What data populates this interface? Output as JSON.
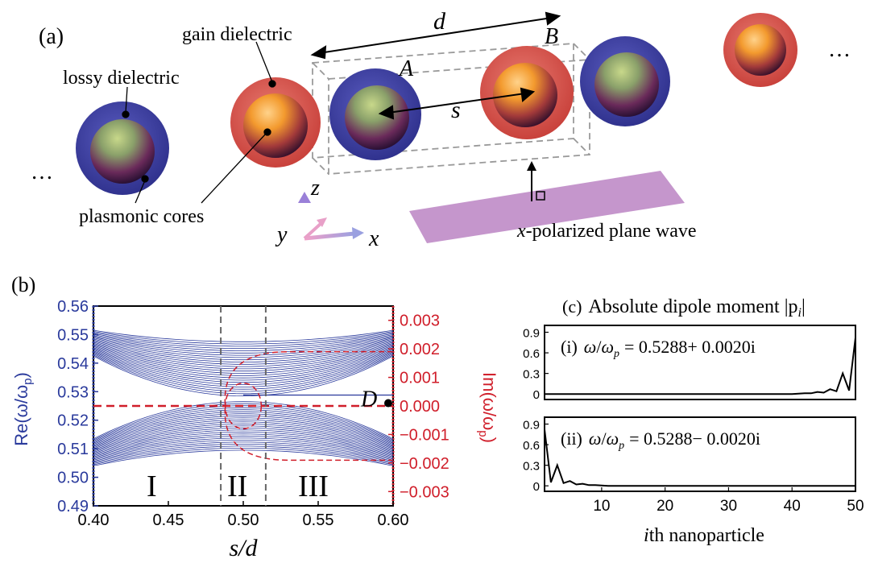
{
  "panel_a": {
    "label": "(a)",
    "d_label": "d",
    "s_label": "s",
    "A_label": "A",
    "B_label": "B",
    "gain_label": "gain dielectric",
    "lossy_label": "lossy dielectric",
    "cores_label": "plasmonic cores",
    "wave_label_var": "x",
    "wave_label_text": "-polarized plane wave",
    "ellipsis": "…",
    "axes": {
      "z": "z",
      "y": "y",
      "x": "x"
    },
    "colors": {
      "gain": "#d9534f",
      "lossy": "#3d3fa8",
      "core": "#f0a030",
      "wave": "#c596cc"
    }
  },
  "panel_b": {
    "label": "(b)",
    "region_labels": [
      "I",
      "II",
      "III"
    ],
    "D_label": "D",
    "left_axis_label": "Re(ω/ω",
    "left_axis_sub": "p",
    "right_axis_label": "Im(ω/ω",
    "right_axis_sub": "p",
    "xlabel": "s/d",
    "colors": {
      "left": "#2a3a9c",
      "right": "#d01e2a"
    }
  },
  "panel_c": {
    "label": "(c)",
    "title": "Absolute dipole moment |p",
    "title_sub": "i",
    "title_end": "|",
    "sub1_prefix": "(i)",
    "sub1_value": "= 0.5288+ 0.0020i",
    "sub2_prefix": "(ii)",
    "sub2_value": "= 0.5288− 0.0020i",
    "omega": "ω",
    "omega_p": "ω",
    "omega_sub": "p",
    "xlabel_var": "i",
    "xlabel_text": "th nanoparticle"
  },
  "chart_data": [
    {
      "type": "line",
      "panel": "(b)",
      "x_ticks": [
        "0.40",
        "0.45",
        "0.50",
        "0.55",
        "0.60"
      ],
      "xlim": [
        0.4,
        0.6
      ],
      "xlabel": "s/d",
      "left_axis": {
        "label": "Re(ω/ωp)",
        "ylim": [
          0.49,
          0.56
        ],
        "ticks": [
          "0.49",
          "0.50",
          "0.51",
          "0.52",
          "0.53",
          "0.54",
          "0.55",
          "0.56"
        ]
      },
      "right_axis": {
        "label": "Im(ω/ωp)",
        "ylim": [
          -0.0035,
          0.0035
        ],
        "ticks": [
          "−0.003",
          "−0.002",
          "−0.001",
          "0.000",
          "0.001",
          "0.002",
          "0.003"
        ]
      },
      "region_boundaries": [
        0.485,
        0.515
      ],
      "regions": [
        "I",
        "II",
        "III"
      ],
      "re_bands": {
        "count": 25,
        "upper_edge_at_0.40": [
          0.5425,
          0.5515
        ],
        "upper_edge_at_0.50": [
          0.5285,
          0.5475
        ],
        "lower_edge_at_0.40": [
          0.504,
          0.5135
        ],
        "lower_edge_at_0.50": [
          0.5095,
          0.5265
        ],
        "merge_value": 0.5288
      },
      "im_dashed": {
        "baseline": 0.0,
        "outer_range": [
          -0.0019,
          0.0019
        ],
        "inner_range": [
          -0.0008,
          0.0008
        ]
      },
      "point_D": {
        "x": 0.6,
        "y": 0.5288
      }
    },
    {
      "type": "line",
      "panel": "(c)(i)",
      "xlim": [
        1,
        50
      ],
      "ylim": [
        -0.08,
        1.0
      ],
      "y_ticks": [
        "0",
        "0.3",
        "0.6",
        "0.9"
      ],
      "x": [
        1,
        2,
        3,
        4,
        5,
        6,
        7,
        8,
        9,
        10,
        11,
        12,
        13,
        14,
        15,
        16,
        17,
        18,
        19,
        20,
        21,
        22,
        23,
        24,
        25,
        26,
        27,
        28,
        29,
        30,
        31,
        32,
        33,
        34,
        35,
        36,
        37,
        38,
        39,
        40,
        41,
        42,
        43,
        44,
        45,
        46,
        47,
        48,
        49,
        50
      ],
      "y": [
        0,
        0,
        0,
        0,
        0,
        0,
        0,
        0,
        0,
        0,
        0,
        0,
        0,
        0,
        0,
        0,
        0,
        0,
        0,
        0,
        0,
        0,
        0,
        0,
        0,
        0,
        0,
        0,
        0,
        0,
        0,
        0,
        0,
        0,
        0,
        0,
        0,
        0,
        0,
        0,
        0.005,
        0.01,
        0.01,
        0.03,
        0.02,
        0.07,
        0.04,
        0.3,
        0.05,
        0.82
      ]
    },
    {
      "type": "line",
      "panel": "(c)(ii)",
      "xlim": [
        1,
        50
      ],
      "ylim": [
        -0.08,
        1.0
      ],
      "y_ticks": [
        "0",
        "0.3",
        "0.6",
        "0.9"
      ],
      "x_ticks": [
        "10",
        "20",
        "30",
        "40",
        "50"
      ],
      "x": [
        1,
        2,
        3,
        4,
        5,
        6,
        7,
        8,
        9,
        10,
        11,
        12,
        13,
        14,
        15,
        16,
        17,
        18,
        19,
        20,
        21,
        22,
        23,
        24,
        25,
        26,
        27,
        28,
        29,
        30,
        31,
        32,
        33,
        34,
        35,
        36,
        37,
        38,
        39,
        40,
        41,
        42,
        43,
        44,
        45,
        46,
        47,
        48,
        49,
        50
      ],
      "y": [
        0.82,
        0.05,
        0.3,
        0.04,
        0.07,
        0.02,
        0.03,
        0.01,
        0.01,
        0.005,
        0,
        0,
        0,
        0,
        0,
        0,
        0,
        0,
        0,
        0,
        0,
        0,
        0,
        0,
        0,
        0,
        0,
        0,
        0,
        0,
        0,
        0,
        0,
        0,
        0,
        0,
        0,
        0,
        0,
        0,
        0,
        0,
        0,
        0,
        0,
        0,
        0,
        0,
        0,
        0
      ]
    }
  ]
}
